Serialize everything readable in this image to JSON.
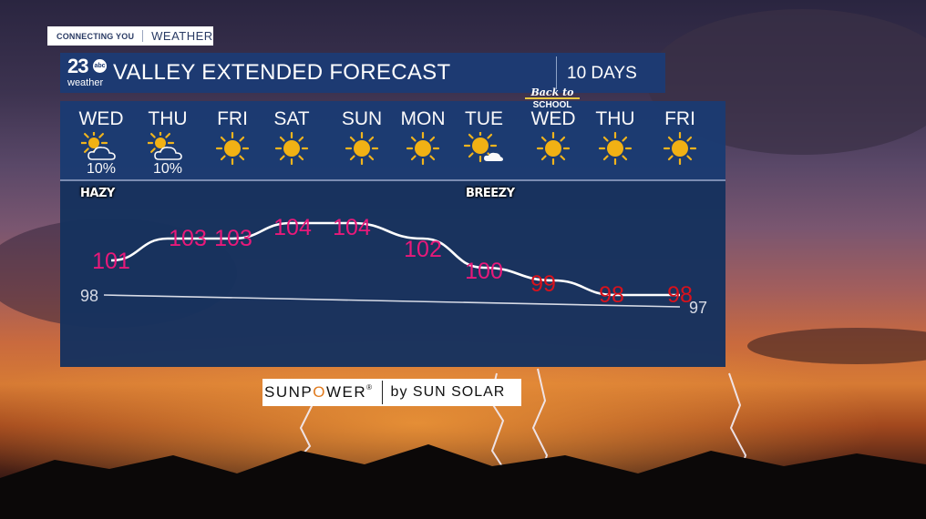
{
  "tag": {
    "left": "CONNECTING YOU",
    "right": "WEATHER"
  },
  "logo": {
    "number": "23",
    "network": "abc",
    "word": "weather"
  },
  "header": {
    "title": "VALLEY EXTENDED FORECAST",
    "range": "10 DAYS"
  },
  "days": [
    {
      "name": "WED",
      "icon": "partly-cloudy-icon",
      "precip": "10%"
    },
    {
      "name": "THU",
      "icon": "partly-cloudy-icon",
      "precip": "10%"
    },
    {
      "name": "FRI",
      "icon": "sun-icon",
      "precip": ""
    },
    {
      "name": "SAT",
      "icon": "sun-icon",
      "precip": ""
    },
    {
      "name": "SUN",
      "icon": "sun-icon",
      "precip": ""
    },
    {
      "name": "MON",
      "icon": "sun-icon",
      "precip": ""
    },
    {
      "name": "TUE",
      "icon": "mostly-sunny-icon",
      "precip": ""
    },
    {
      "name": "WED",
      "icon": "sun-icon",
      "precip": ""
    },
    {
      "name": "THU",
      "icon": "sun-icon",
      "precip": ""
    },
    {
      "name": "FRI",
      "icon": "sun-icon",
      "precip": ""
    }
  ],
  "badge": {
    "line1": "Back to",
    "line2": "SCHOOL"
  },
  "notes": {
    "hazy": "HAZY",
    "breezy": "BREEZY"
  },
  "chart_data": {
    "type": "line",
    "categories": [
      "WED",
      "THU",
      "FRI",
      "SAT",
      "SUN",
      "MON",
      "TUE",
      "WED",
      "THU",
      "FRI"
    ],
    "series": [
      {
        "values": [
          101,
          103,
          103,
          104,
          104,
          102,
          100,
          99,
          98,
          98
        ]
      }
    ],
    "normal": {
      "start": "98",
      "end": "97"
    },
    "colors": {
      "above_normal": "#e8197a",
      "near_normal": "#d8121c",
      "normal_line": "#d7dbe6",
      "trend_line": "#ffffff"
    }
  },
  "sponsor": {
    "brand_a": "SUNP",
    "brand_o": "O",
    "brand_b": "WER",
    "reg": "®",
    "partner": "by SUN SOLAR"
  }
}
